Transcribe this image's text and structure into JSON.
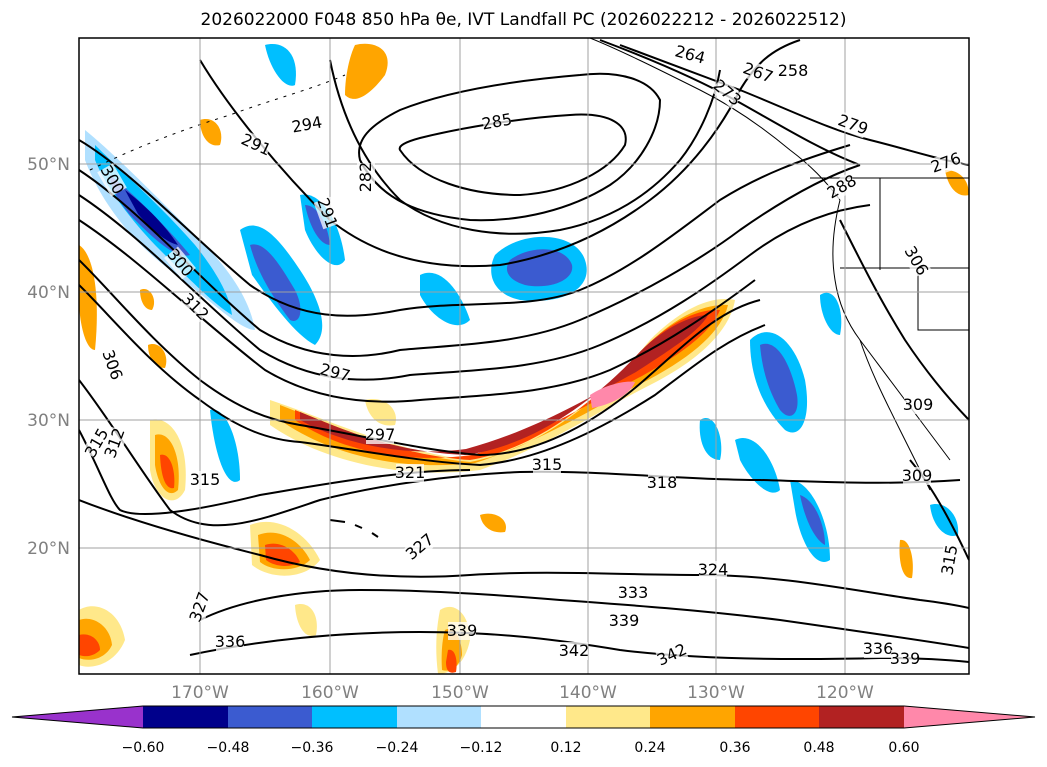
{
  "title": "2026022000 F048 850 hPa θe, IVT Landfall PC (2026022212 - 2026022512)",
  "map": {
    "lat_labels": [
      "50°N",
      "40°N",
      "30°N",
      "20°N"
    ],
    "lon_labels": [
      "170°W",
      "160°W",
      "150°W",
      "140°W",
      "130°W",
      "120°W"
    ],
    "contour_labels": [
      "300",
      "291",
      "294",
      "285",
      "282",
      "291",
      "264",
      "267",
      "258",
      "273",
      "279",
      "276",
      "288",
      "297",
      "306",
      "300",
      "312",
      "297",
      "306",
      "309",
      "315",
      "312",
      "315",
      "321",
      "315",
      "318",
      "309",
      "327",
      "324",
      "315",
      "327",
      "333",
      "336",
      "339",
      "339",
      "342",
      "342",
      "336",
      "339"
    ]
  },
  "colorbar": {
    "ticks": [
      "−0.60",
      "−0.48",
      "−0.36",
      "−0.24",
      "−0.12",
      "0.12",
      "0.24",
      "0.36",
      "0.48",
      "0.60"
    ],
    "colors": [
      "#9932cc",
      "#00008b",
      "#3b5bd0",
      "#00bfff",
      "#b0e0ff",
      "#ffffff",
      "#ffe88a",
      "#ffa500",
      "#ff4500",
      "#b22222",
      "#ff88aa"
    ]
  }
}
